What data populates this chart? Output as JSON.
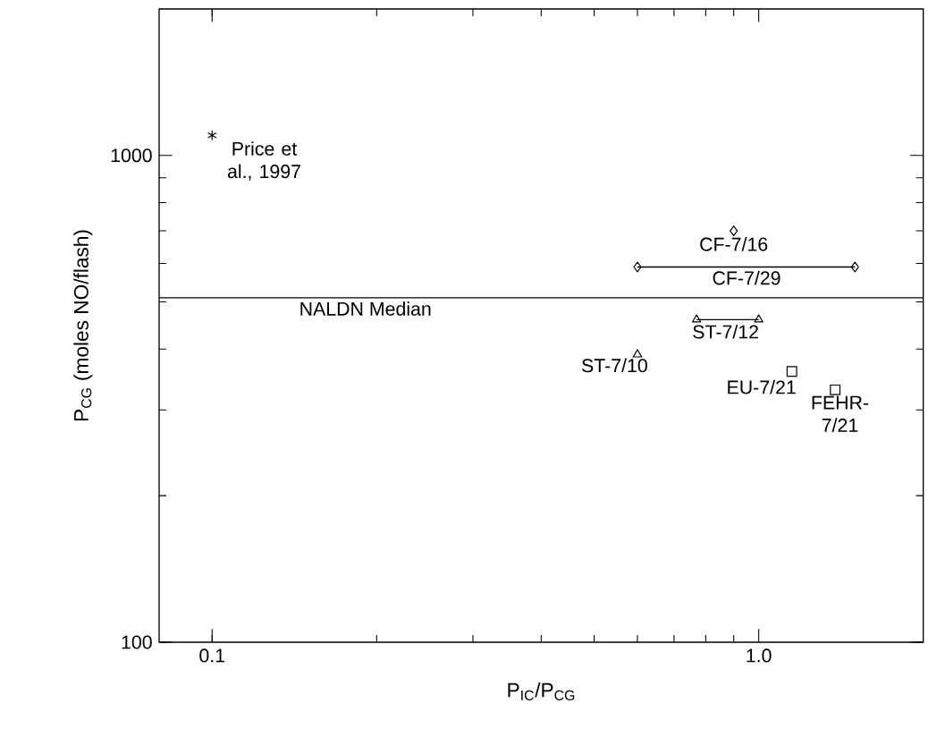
{
  "chart_data": {
    "type": "scatter",
    "xlabel": "P$_{IC}$/P$_{CG}$",
    "ylabel": "P$_{CG}$ (moles NO/flash)",
    "log": "xy",
    "xlim": [
      0.08,
      2
    ],
    "ylim": [
      100,
      2000
    ],
    "xticks": [
      0.1,
      {
        "value": 1,
        "label": "1.0"
      }
    ],
    "yticks": [
      100,
      1000
    ],
    "series": [
      {
        "marker": "cross",
        "color": "#000000",
        "x": [
          0.1
        ],
        "values": [
          1100
        ]
      },
      {
        "marker": "diamond",
        "color": "#000000",
        "x": [
          0.9
        ],
        "values": [
          700
        ]
      },
      {
        "type": "line",
        "marker": "diamond",
        "color": "#000000",
        "x": [
          0.6,
          1.5
        ],
        "values": [
          590,
          590
        ]
      },
      {
        "type": "line",
        "marker": "triangle",
        "color": "#000000",
        "x": [
          0.77,
          1.0
        ],
        "values": [
          460,
          460
        ]
      },
      {
        "marker": "triangle",
        "color": "#000000",
        "x": [
          0.6
        ],
        "values": [
          390
        ]
      },
      {
        "marker": "square",
        "color": "#000000",
        "x": [
          1.15
        ],
        "values": [
          360
        ]
      },
      {
        "marker": "square",
        "color": "#000000",
        "x": [
          1.38
        ],
        "values": [
          330
        ]
      }
    ],
    "ref_lines": [
      {
        "axis": "y",
        "value": 510,
        "label": "NALDN Median",
        "color": "#000000"
      }
    ],
    "annotations": [
      {
        "text": "Price et al., 1997",
        "x": 0.1,
        "y": 1100
      },
      {
        "text": "CF-7/16",
        "x": 0.9,
        "y": 700
      },
      {
        "text": "CF-7/29",
        "x": 0.95,
        "y": 590
      },
      {
        "text": "ST-7/12",
        "x": 0.87,
        "y": 460
      },
      {
        "text": "ST-7/10",
        "x": 0.6,
        "y": 390
      },
      {
        "text": "EU-7/21",
        "x": 1.15,
        "y": 360
      },
      {
        "text": "FEHR-7/21",
        "x": 1.38,
        "y": 330
      }
    ]
  }
}
